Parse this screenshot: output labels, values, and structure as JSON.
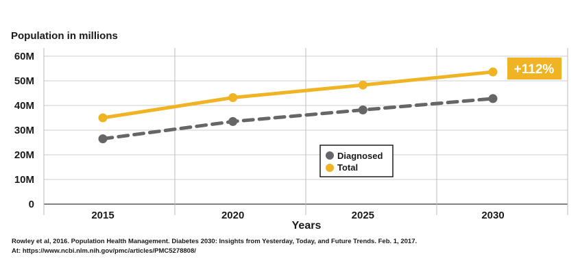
{
  "chart_data": {
    "type": "line",
    "ylabel": "Population in millions",
    "xlabel": "Years",
    "x": [
      2015,
      2020,
      2025,
      2030
    ],
    "yticks": [
      "0",
      "10M",
      "20M",
      "30M",
      "40M",
      "50M",
      "60M"
    ],
    "ylim": [
      0,
      60
    ],
    "series": [
      {
        "name": "Diagnosed",
        "values": [
          26.5,
          33.5,
          38.2,
          42.8
        ],
        "color": "#666666",
        "style": "dashed"
      },
      {
        "name": "Total",
        "values": [
          35.0,
          43.2,
          48.3,
          53.6
        ],
        "color": "#f0b323",
        "style": "solid"
      }
    ],
    "annotation": {
      "text": "+112%",
      "color": "#f0b323"
    },
    "legend": "center-right inside plot",
    "grid": true
  },
  "source": {
    "line1": "Rowley et al, 2016. Population Health Management. Diabetes 2030: Insights from Yesterday, Today, and Future Trends. Feb. 1, 2017.",
    "line2": "At: https://www.ncbi.nlm.nih.gov/pmc/articles/PMC5278808/"
  }
}
